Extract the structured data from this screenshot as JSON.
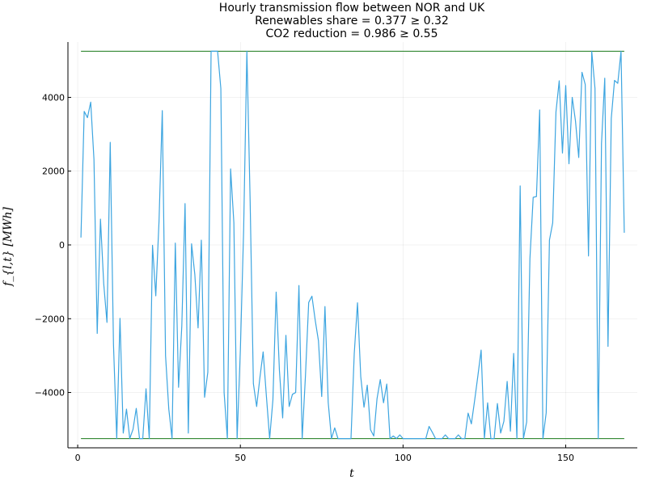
{
  "chart_data": {
    "type": "line",
    "title_lines": [
      "Hourly transmission flow between NOR and UK",
      "Renewables share = 0.377 ≥ 0.32",
      "CO2 reduction = 0.986 ≥ 0.55"
    ],
    "xlabel": "t",
    "ylabel": "f_{l,t} [MWh]",
    "xlim": [
      -3,
      172
    ],
    "ylim": [
      -5500,
      5500
    ],
    "xticks": [
      0,
      50,
      100,
      150
    ],
    "yticks": [
      -4000,
      -2000,
      0,
      2000,
      4000
    ],
    "ytick_labels": [
      "−4000",
      "−2000",
      "0",
      "2000",
      "4000"
    ],
    "grid": true,
    "legend": "none",
    "colors": {
      "series": "#3da5e0",
      "bounds": "#1a7a1a"
    },
    "bounds": {
      "upper": 5250,
      "lower": -5250,
      "x_range": [
        1,
        168
      ]
    },
    "series": [
      {
        "x": [
          1,
          2,
          3,
          4,
          5,
          6,
          7,
          8,
          9,
          10,
          11,
          12,
          13,
          14,
          15,
          16,
          17,
          18,
          19,
          20,
          21,
          22,
          23,
          24,
          25,
          26,
          27,
          28,
          29,
          30,
          31,
          32,
          33,
          34,
          35,
          36,
          37,
          38,
          39,
          40,
          41,
          42,
          43,
          44,
          45,
          46,
          47,
          48,
          49,
          50,
          51,
          52,
          53,
          54,
          55,
          56,
          57,
          58,
          59,
          60,
          61,
          62,
          63,
          64,
          65,
          66,
          67,
          68,
          69,
          70,
          71,
          72,
          73,
          74,
          75,
          76,
          77,
          78,
          79,
          80,
          81,
          82,
          83,
          84,
          85,
          86,
          87,
          88,
          89,
          90,
          91,
          92,
          93,
          94,
          95,
          96,
          97,
          98,
          99,
          100,
          101,
          102,
          103,
          104,
          105,
          106,
          107,
          108,
          109,
          110,
          111,
          112,
          113,
          114,
          115,
          116,
          117,
          118,
          119,
          120,
          121,
          122,
          123,
          124,
          125,
          126,
          127,
          128,
          129,
          130,
          131,
          132,
          133,
          134,
          135,
          136,
          137,
          138,
          139,
          140,
          141,
          142,
          143,
          144,
          145,
          146,
          147,
          148,
          149,
          150,
          151,
          152,
          153,
          154,
          155,
          156,
          157,
          158,
          159,
          160,
          161,
          162,
          163,
          164,
          165,
          166,
          167,
          168
        ],
        "values": [
          200,
          3620,
          3450,
          3870,
          2320,
          -2400,
          700,
          -1050,
          -2100,
          2780,
          -2700,
          -5250,
          -1990,
          -5100,
          -4450,
          -5250,
          -5000,
          -4430,
          -5250,
          -5250,
          -3900,
          -5250,
          -10,
          -1380,
          650,
          3640,
          -3000,
          -4450,
          -5250,
          50,
          -3860,
          -2200,
          1120,
          -5100,
          30,
          -800,
          -2250,
          130,
          -4130,
          -3450,
          5250,
          5250,
          5250,
          4240,
          -4000,
          -5250,
          2060,
          600,
          -5250,
          -2850,
          380,
          5250,
          1200,
          -3760,
          -4380,
          -3600,
          -2900,
          -4100,
          -5250,
          -4200,
          -1280,
          -3400,
          -4690,
          -2450,
          -4380,
          -4050,
          -4000,
          -1100,
          -5250,
          -3550,
          -1560,
          -1390,
          -2040,
          -2600,
          -4110,
          -1670,
          -4270,
          -5250,
          -4960,
          -5250,
          -5250,
          -5250,
          -5250,
          -5250,
          -2950,
          -1570,
          -3570,
          -4400,
          -3800,
          -5010,
          -5180,
          -4170,
          -3650,
          -4280,
          -3770,
          -5250,
          -5180,
          -5250,
          -5150,
          -5250,
          -5250,
          -5250,
          -5250,
          -5250,
          -5250,
          -5250,
          -5250,
          -4920,
          -5080,
          -5250,
          -5250,
          -5250,
          -5150,
          -5250,
          -5250,
          -5250,
          -5150,
          -5250,
          -5250,
          -4560,
          -4850,
          -4220,
          -3550,
          -2850,
          -5250,
          -4280,
          -5250,
          -5250,
          -4300,
          -5100,
          -4780,
          -3700,
          -5050,
          -2940,
          -5250,
          1600,
          -5250,
          -4800,
          -370,
          1290,
          1310,
          3660,
          -5250,
          -4550,
          130,
          600,
          3600,
          4450,
          2490,
          4320,
          2200,
          4000,
          3360,
          2370,
          4680,
          4350,
          -300,
          5250,
          4240,
          -5250,
          2750,
          4520,
          -2750,
          3430,
          4460,
          4380,
          5250,
          330
        ]
      }
    ]
  }
}
